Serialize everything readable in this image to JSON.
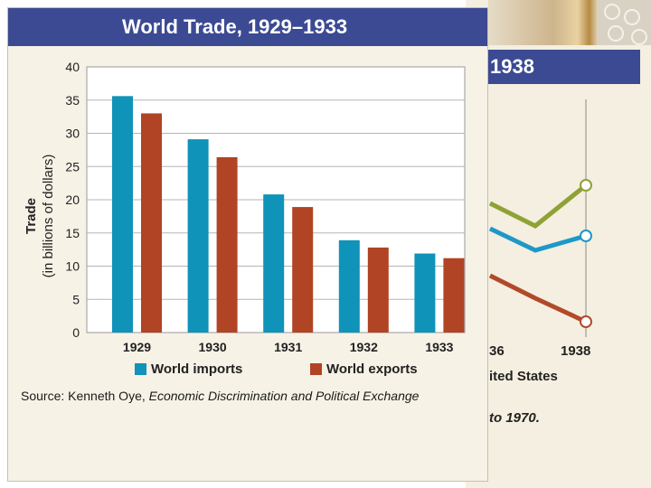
{
  "chart_data": {
    "type": "bar",
    "title": "World Trade, 1929–1933",
    "ylabel_line1": "Trade",
    "ylabel_line2": "(in billions of dollars)",
    "xlabel": "",
    "categories": [
      "1929",
      "1930",
      "1931",
      "1932",
      "1933"
    ],
    "ylim": [
      0,
      40
    ],
    "yticks": [
      "0",
      "5",
      "10",
      "15",
      "20",
      "25",
      "30",
      "35",
      "40"
    ],
    "grid": true,
    "legend_position": "bottom",
    "series": [
      {
        "name": "World imports",
        "color": "#0f93b9",
        "values": [
          35.6,
          29.1,
          20.8,
          13.9,
          11.9
        ]
      },
      {
        "name": "World exports",
        "color": "#b04424",
        "values": [
          33.0,
          26.4,
          18.9,
          12.8,
          11.2
        ]
      }
    ]
  },
  "source": {
    "prefix": "Source: Kenneth Oye, ",
    "title": "Economic Discrimination and Political Exchange"
  },
  "background_slide": {
    "header_fragment": "1938",
    "tick_fragment_a": "36",
    "tick_fragment_b": "1938",
    "subtitle_fragment": "ited States",
    "note_fragment": "to 1970.",
    "series_colors": [
      "#8ea236",
      "#1e98c8",
      "#b2492a"
    ]
  }
}
